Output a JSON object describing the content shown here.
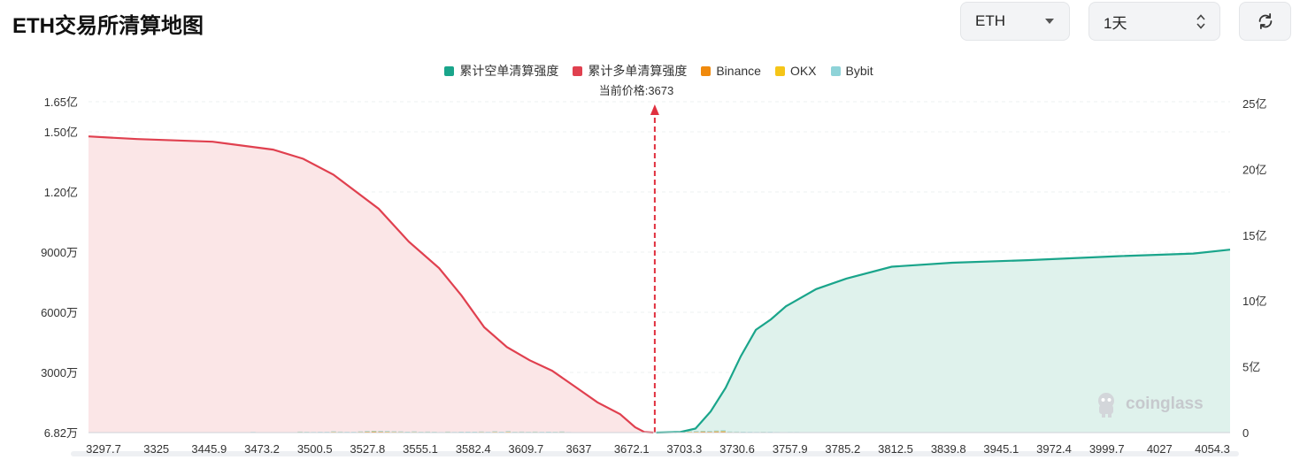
{
  "header": {
    "title": "ETH交易所清算地图",
    "symbol_select": "ETH",
    "range_select": "1天"
  },
  "icons": {
    "symbol_caret": "chevron-down-icon",
    "range_spinner": "up-down-chevron-icon",
    "refresh": "refresh-icon",
    "watermark_logo": "coinglass-logo-icon"
  },
  "watermark_text": "coinglass",
  "colors": {
    "short_cum": "#1aa58b",
    "long_cum": "#e0404f",
    "binance": "#f08a0d",
    "okx": "#f5c518",
    "bybit": "#8ed3d8",
    "long_area": "#fbe6e7",
    "short_area": "#dff2ec"
  },
  "chart_data": {
    "type": "bar",
    "current_price_label": "当前价格:3673",
    "current_price": 3673,
    "x_tick_labels": [
      "3297.7",
      "3325",
      "3445.9",
      "3473.2",
      "3500.5",
      "3527.8",
      "3555.1",
      "3582.4",
      "3609.7",
      "3637",
      "3672.1",
      "3703.3",
      "3730.6",
      "3757.9",
      "3785.2",
      "3812.5",
      "3839.8",
      "3945.1",
      "3972.4",
      "3999.7",
      "4027",
      "4054.3"
    ],
    "x_range": [
      3297.7,
      4054.3
    ],
    "y_left_ticks": [
      "6.82万",
      "3000万",
      "6000万",
      "9000万",
      "1.20亿",
      "1.50亿",
      "1.65亿"
    ],
    "y_left_values": [
      68200,
      30000000,
      60000000,
      90000000,
      120000000,
      150000000,
      165000000
    ],
    "y_right_ticks": [
      "0",
      "5亿",
      "10亿",
      "15亿",
      "20亿",
      "25亿"
    ],
    "y_right_range": [
      0,
      2500000000
    ],
    "legend": [
      {
        "name": "累计空单清算强度",
        "color": "#1aa58b"
      },
      {
        "name": "累计多单清算强度",
        "color": "#e0404f"
      },
      {
        "name": "Binance",
        "color": "#f08a0d"
      },
      {
        "name": "OKX",
        "color": "#f5c518"
      },
      {
        "name": "Bybit",
        "color": "#8ed3d8"
      }
    ],
    "bar_series_stacked": [
      {
        "name": "Binance",
        "unit": "万",
        "values": [
          1,
          1,
          1,
          2,
          1,
          1,
          0.5,
          1,
          1,
          7,
          8,
          7,
          10,
          6,
          4,
          4,
          1,
          4,
          4,
          5,
          6,
          9,
          11,
          10,
          16,
          9,
          8,
          9,
          8,
          12,
          10,
          25,
          21,
          16,
          17,
          19,
          31,
          24,
          18,
          19,
          29,
          38,
          46,
          40,
          36,
          31,
          28,
          22,
          28,
          21,
          24,
          20,
          14,
          25,
          15,
          23,
          22,
          23,
          27,
          19,
          31,
          22,
          32,
          21,
          25,
          21,
          25,
          19,
          23,
          21,
          26,
          14,
          6,
          2,
          0,
          0,
          0,
          0,
          0,
          0,
          0,
          0,
          0,
          0,
          0,
          0,
          28,
          36,
          36,
          32,
          35,
          45,
          40,
          50,
          56,
          27,
          24,
          22,
          18,
          16,
          20,
          18,
          14,
          12,
          13,
          14,
          11,
          9,
          8,
          9,
          9,
          7,
          6,
          5,
          6,
          5,
          4,
          3,
          6,
          3,
          3,
          3,
          3,
          4,
          3,
          4,
          4,
          11,
          8,
          1,
          1,
          1,
          1,
          1,
          1,
          1,
          1,
          1,
          1,
          1,
          1,
          1,
          1,
          1,
          1,
          1,
          1,
          1,
          1,
          1,
          1,
          1,
          1,
          1,
          1,
          1,
          1,
          1,
          1,
          1,
          1,
          1,
          1,
          1,
          1,
          1,
          1,
          1,
          1,
          1
        ]
      },
      {
        "name": "OKX",
        "unit": "万",
        "values": [
          0.5,
          0.5,
          0.5,
          0.5,
          0.5,
          0.5,
          0.5,
          0.5,
          0.5,
          2,
          2,
          2,
          3,
          2,
          1,
          1,
          0.5,
          1,
          1,
          1,
          2,
          2,
          3,
          3,
          4,
          3,
          2,
          3,
          2,
          4,
          3,
          8,
          6,
          5,
          5,
          5,
          8,
          7,
          5,
          5,
          8,
          10,
          12,
          11,
          10,
          9,
          8,
          7,
          8,
          6,
          7,
          6,
          4,
          7,
          4,
          6,
          6,
          6,
          7,
          5,
          8,
          6,
          8,
          6,
          6,
          5,
          7,
          5,
          6,
          5,
          7,
          4,
          2,
          0.5,
          0,
          0,
          0,
          0,
          0,
          0,
          0,
          0,
          0,
          0,
          0,
          0,
          8,
          10,
          10,
          9,
          10,
          12,
          11,
          14,
          16,
          8,
          7,
          6,
          5,
          4,
          5,
          5,
          4,
          3,
          3,
          4,
          3,
          2,
          2,
          2,
          2,
          2,
          1.5,
          1.5,
          1.5,
          1.5,
          1,
          1,
          2,
          1,
          1,
          1,
          1,
          1,
          1,
          1,
          1,
          3,
          2,
          0.5,
          0.5,
          0.5,
          0.5,
          0.5,
          0.5,
          0.5,
          0.5,
          0.5,
          0.5,
          0.5,
          0.5,
          0.5,
          0.5,
          0.5,
          0.5,
          0.5,
          0.5,
          0.5,
          0.5,
          0.5,
          0.5,
          0.5,
          0.5,
          0.5,
          0.5,
          0.5,
          0.5,
          0.5,
          0.5,
          0.5,
          0.5,
          0.5,
          0.5,
          0.5,
          0.5,
          0.5,
          0.5,
          0.5,
          0.5,
          0.5
        ]
      },
      {
        "name": "Bybit",
        "unit": "万",
        "values": [
          2,
          2,
          2,
          2,
          3,
          2,
          1,
          2,
          2,
          4,
          4,
          4,
          5,
          4,
          3,
          3,
          1,
          3,
          3,
          4,
          5,
          6,
          7,
          6,
          9,
          6,
          5,
          6,
          5,
          8,
          7,
          17,
          14,
          11,
          12,
          13,
          24,
          17,
          13,
          14,
          20,
          28,
          32,
          30,
          26,
          22,
          20,
          16,
          20,
          15,
          18,
          14,
          10,
          18,
          11,
          17,
          16,
          16,
          19,
          14,
          22,
          16,
          24,
          15,
          18,
          15,
          18,
          14,
          17,
          15,
          20,
          10,
          4,
          1,
          0,
          0,
          0,
          0,
          0,
          0,
          0,
          0,
          0,
          0,
          0,
          0,
          20,
          26,
          26,
          23,
          25,
          32,
          29,
          37,
          42,
          20,
          18,
          16,
          13,
          12,
          14,
          13,
          10,
          9,
          9,
          10,
          8,
          6,
          6,
          7,
          7,
          5,
          4,
          4,
          4,
          4,
          3,
          2,
          4,
          2,
          2,
          2,
          2,
          3,
          2,
          3,
          3,
          8,
          6,
          1,
          1,
          1,
          1,
          1,
          1,
          1,
          1,
          1,
          1,
          1,
          1,
          1,
          1,
          1,
          1,
          1,
          1,
          1,
          1,
          1,
          1,
          1,
          1,
          1,
          1,
          1,
          1,
          1,
          1,
          1,
          1,
          1,
          1,
          1,
          1,
          1,
          1,
          1,
          1,
          1
        ]
      }
    ],
    "cumulative_long": {
      "name": "累计多单清算强度",
      "unit": "亿",
      "x": [
        3297.7,
        3330,
        3380,
        3420,
        3440,
        3460,
        3490,
        3510,
        3530,
        3545,
        3560,
        3575,
        3590,
        3605,
        3620,
        3635,
        3650,
        3660,
        3666,
        3672
      ],
      "values": [
        22.5,
        22.3,
        22.1,
        21.5,
        20.8,
        19.6,
        17.0,
        14.5,
        12.5,
        10.4,
        8.0,
        6.5,
        5.5,
        4.7,
        3.5,
        2.3,
        1.4,
        0.4,
        0.05,
        0
      ]
    },
    "cumulative_short": {
      "name": "累计空单清算强度",
      "unit": "亿",
      "x": [
        3674,
        3690,
        3700,
        3710,
        3720,
        3730,
        3740,
        3750,
        3760,
        3780,
        3800,
        3830,
        3870,
        3920,
        3980,
        4030,
        4054.3
      ],
      "values": [
        0,
        0.05,
        0.3,
        1.6,
        3.4,
        5.8,
        7.8,
        8.6,
        9.6,
        10.9,
        11.7,
        12.6,
        12.9,
        13.1,
        13.4,
        13.6,
        13.9
      ]
    },
    "grid": true
  }
}
